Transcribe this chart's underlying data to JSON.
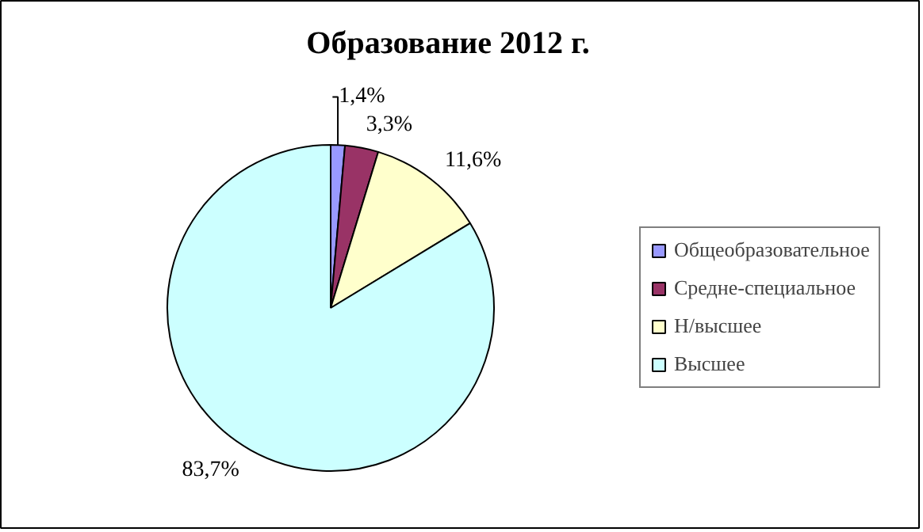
{
  "chart_data": {
    "type": "pie",
    "title": "Образование 2012 г.",
    "categories": [
      "Общеобразовательное",
      "Средне-специальное",
      "Н/высшее",
      "Высшее"
    ],
    "values": [
      1.4,
      3.3,
      11.6,
      83.7
    ],
    "value_labels": [
      "1,4%",
      "3,3%",
      "11,6%",
      "83,7%"
    ],
    "colors": [
      "#9999ff",
      "#993366",
      "#ffffcc",
      "#ccffff"
    ],
    "legend": "right"
  }
}
